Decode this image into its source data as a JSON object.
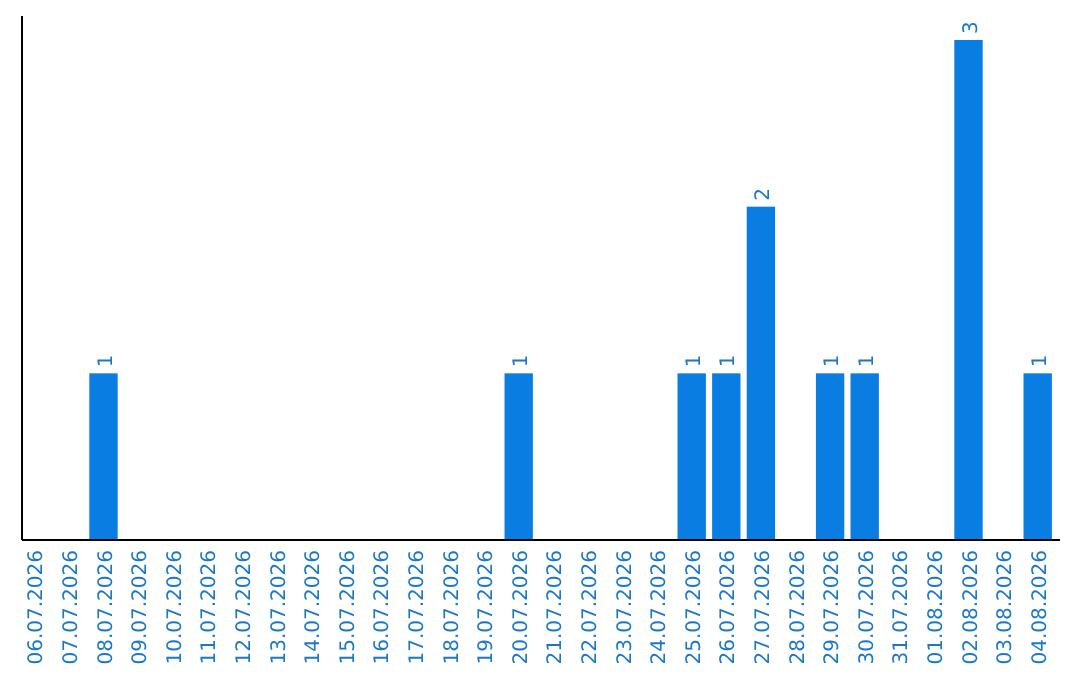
{
  "chart_data": {
    "type": "bar",
    "categories": [
      "06.07.2026",
      "07.07.2026",
      "08.07.2026",
      "09.07.2026",
      "10.07.2026",
      "11.07.2026",
      "12.07.2026",
      "13.07.2026",
      "14.07.2026",
      "15.07.2026",
      "16.07.2026",
      "17.07.2026",
      "18.07.2026",
      "19.07.2026",
      "20.07.2026",
      "21.07.2026",
      "22.07.2026",
      "23.07.2026",
      "24.07.2026",
      "25.07.2026",
      "26.07.2026",
      "27.07.2026",
      "28.07.2026",
      "29.07.2026",
      "30.07.2026",
      "31.07.2026",
      "01.08.2026",
      "02.08.2026",
      "03.08.2026",
      "04.08.2026"
    ],
    "values": [
      0,
      0,
      1,
      0,
      0,
      0,
      0,
      0,
      0,
      0,
      0,
      0,
      0,
      0,
      1,
      0,
      0,
      0,
      0,
      1,
      1,
      2,
      0,
      1,
      1,
      0,
      0,
      3,
      0,
      1
    ],
    "value_labels": [
      null,
      null,
      "1",
      null,
      null,
      null,
      null,
      null,
      null,
      null,
      null,
      null,
      null,
      null,
      "1",
      null,
      null,
      null,
      null,
      "1",
      "1",
      "2",
      null,
      "1",
      "1",
      null,
      null,
      "3",
      null,
      "1"
    ],
    "color": "#0a7de3"
  }
}
